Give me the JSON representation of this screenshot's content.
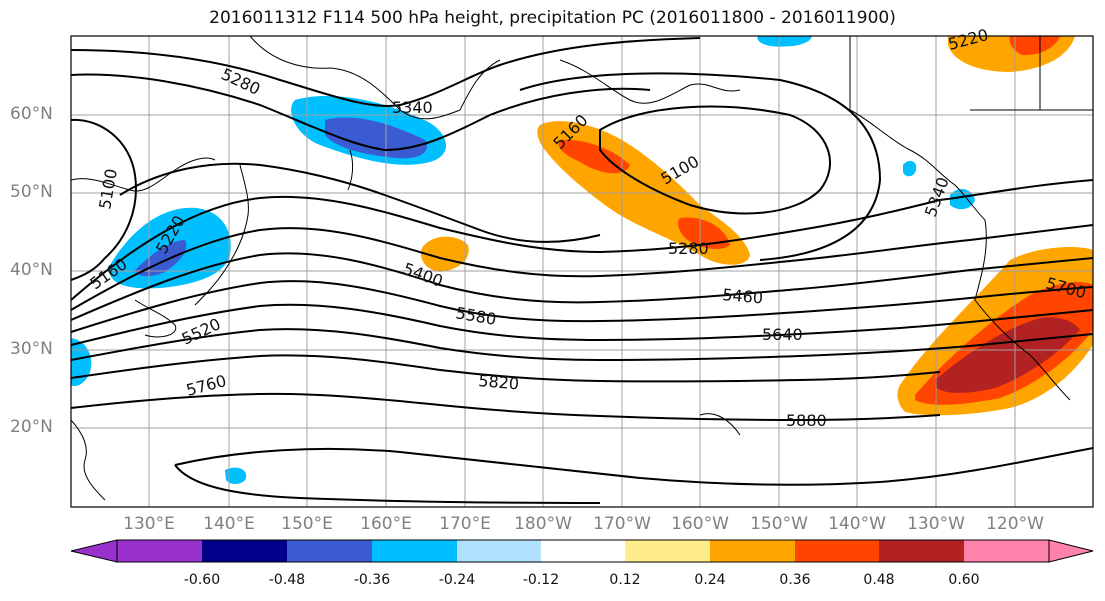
{
  "title": "2016011312 F114 500 hPa height, precipitation PC (2016011800 - 2016011900)",
  "map": {
    "lat_labels": [
      "60°N",
      "50°N",
      "40°N",
      "30°N",
      "20°N"
    ],
    "lon_labels": [
      "130°E",
      "140°E",
      "150°E",
      "160°E",
      "170°E",
      "180°W",
      "170°W",
      "160°W",
      "150°W",
      "140°W",
      "130°W",
      "120°W"
    ],
    "contour_labels": [
      "5280",
      "5340",
      "5100",
      "5160",
      "5100",
      "5220",
      "5160",
      "5400",
      "5280",
      "5460",
      "5580",
      "5520",
      "5640",
      "5700",
      "5760",
      "5820",
      "5880",
      "5340",
      "5220"
    ],
    "colors": {
      "land_outline": "#000000",
      "contour": "#000000",
      "grid": "#a0a0a0",
      "precip_neg_light": "#00bfff",
      "precip_neg_medium": "#3a5bd1",
      "precip_pos_light": "#ffa500",
      "precip_pos_medium": "#ff4500",
      "precip_pos_heavy": "#b22222"
    }
  },
  "colorbar": {
    "labels": [
      "-0.60",
      "-0.48",
      "-0.36",
      "-0.24",
      "-0.12",
      "0.12",
      "0.24",
      "0.36",
      "0.48",
      "0.60"
    ],
    "colors": [
      "#9932cc",
      "#00008b",
      "#3a5bd1",
      "#00bfff",
      "#b0e2ff",
      "#ffffff",
      "#ffec8b",
      "#ffa500",
      "#ff4500",
      "#b22222",
      "#ff82ab"
    ]
  }
}
